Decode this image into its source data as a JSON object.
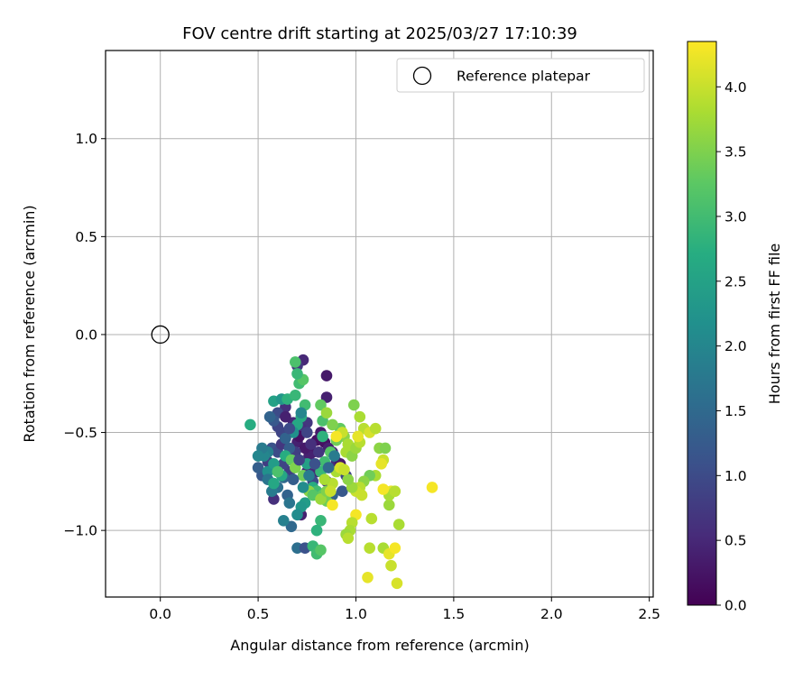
{
  "chart_data": {
    "type": "scatter",
    "title": "FOV centre drift starting at 2025/03/27 17:10:39",
    "xlabel": "Angular distance from reference (arcmin)",
    "ylabel": "Rotation from reference (arcmin)",
    "xlim": [
      -0.28,
      2.52
    ],
    "ylim": [
      -1.34,
      1.45
    ],
    "x_ticks": [
      {
        "value": 0.0,
        "label": "0.0"
      },
      {
        "value": 0.5,
        "label": "0.5"
      },
      {
        "value": 1.0,
        "label": "1.0"
      },
      {
        "value": 1.5,
        "label": "1.5"
      },
      {
        "value": 2.0,
        "label": "2.0"
      },
      {
        "value": 2.5,
        "label": "2.5"
      }
    ],
    "y_ticks": [
      {
        "value": -1.0,
        "label": "−1.0"
      },
      {
        "value": -0.5,
        "label": "−0.5"
      },
      {
        "value": 0.0,
        "label": "0.0"
      },
      {
        "value": 0.5,
        "label": "0.5"
      },
      {
        "value": 1.0,
        "label": "1.0"
      }
    ],
    "grid": true,
    "legend": {
      "position": "top-right",
      "label": "Reference platepar"
    },
    "reference_point": {
      "x": 0.0,
      "y": 0.0
    },
    "colorbar": {
      "label": "Hours from first FF file",
      "colormap": "viridis",
      "range": [
        0.0,
        4.35
      ],
      "ticks": [
        {
          "value": 0.0,
          "label": "0.0"
        },
        {
          "value": 0.5,
          "label": "0.5"
        },
        {
          "value": 1.0,
          "label": "1.0"
        },
        {
          "value": 1.5,
          "label": "1.5"
        },
        {
          "value": 2.0,
          "label": "2.0"
        },
        {
          "value": 2.5,
          "label": "2.5"
        },
        {
          "value": 3.0,
          "label": "3.0"
        },
        {
          "value": 3.5,
          "label": "3.5"
        },
        {
          "value": 4.0,
          "label": "4.0"
        }
      ]
    },
    "points": [
      [
        0.85,
        -0.21,
        0.3
      ],
      [
        0.85,
        -0.32,
        0.4
      ],
      [
        0.73,
        -0.13,
        0.5
      ],
      [
        0.7,
        -0.16,
        0.7
      ],
      [
        0.64,
        -0.37,
        0.6
      ],
      [
        0.6,
        -0.4,
        1.0
      ],
      [
        0.62,
        -0.5,
        0.9
      ],
      [
        0.57,
        -0.58,
        1.1
      ],
      [
        0.55,
        -0.65,
        0.8
      ],
      [
        0.52,
        -0.72,
        1.2
      ],
      [
        0.5,
        -0.68,
        1.3
      ],
      [
        0.58,
        -0.84,
        0.6
      ],
      [
        0.65,
        -0.82,
        1.4
      ],
      [
        0.67,
        -0.98,
        1.5
      ],
      [
        0.7,
        -1.09,
        1.6
      ],
      [
        0.74,
        -1.09,
        1.1
      ],
      [
        0.72,
        -0.92,
        0.4
      ],
      [
        0.75,
        -0.7,
        0.5
      ],
      [
        0.78,
        -0.6,
        0.3
      ],
      [
        0.8,
        -0.54,
        0.2
      ],
      [
        0.7,
        -0.55,
        0.4
      ],
      [
        0.68,
        -0.62,
        0.6
      ],
      [
        0.66,
        -0.7,
        0.8
      ],
      [
        0.63,
        -0.66,
        0.9
      ],
      [
        0.6,
        -0.6,
        1.0
      ],
      [
        0.75,
        -0.45,
        0.7
      ],
      [
        0.72,
        -0.48,
        0.6
      ],
      [
        0.68,
        -0.45,
        0.5
      ],
      [
        0.64,
        -0.42,
        0.4
      ],
      [
        0.62,
        -0.56,
        0.7
      ],
      [
        0.82,
        -0.5,
        0.3
      ],
      [
        0.84,
        -0.55,
        0.2
      ],
      [
        0.86,
        -0.58,
        0.4
      ],
      [
        0.88,
        -0.6,
        0.5
      ],
      [
        0.9,
        -0.65,
        0.6
      ],
      [
        0.92,
        -0.66,
        0.3
      ],
      [
        0.95,
        -0.72,
        0.9
      ],
      [
        0.93,
        -0.8,
        1.2
      ],
      [
        0.88,
        -0.82,
        1.4
      ],
      [
        0.85,
        -0.75,
        0.7
      ],
      [
        0.8,
        -0.7,
        0.5
      ],
      [
        0.78,
        -0.75,
        1.0
      ],
      [
        0.76,
        -0.62,
        0.4
      ],
      [
        0.74,
        -0.58,
        0.3
      ],
      [
        0.71,
        -0.52,
        0.2
      ],
      [
        0.69,
        -0.6,
        0.8
      ],
      [
        0.66,
        -0.58,
        1.3
      ],
      [
        0.63,
        -0.73,
        1.5
      ],
      [
        0.6,
        -0.78,
        1.6
      ],
      [
        0.57,
        -0.8,
        1.8
      ],
      [
        0.55,
        -0.6,
        1.9
      ],
      [
        0.53,
        -0.62,
        2.0
      ],
      [
        0.55,
        -0.7,
        2.2
      ],
      [
        0.58,
        -0.66,
        2.4
      ],
      [
        0.62,
        -0.72,
        2.6
      ],
      [
        0.46,
        -0.46,
        2.7
      ],
      [
        0.58,
        -0.34,
        2.5
      ],
      [
        0.62,
        -0.33,
        2.3
      ],
      [
        0.65,
        -0.33,
        2.8
      ],
      [
        0.69,
        -0.31,
        2.9
      ],
      [
        0.71,
        -0.25,
        3.0
      ],
      [
        0.73,
        -0.23,
        3.2
      ],
      [
        0.7,
        -0.2,
        2.9
      ],
      [
        0.69,
        -0.14,
        3.1
      ],
      [
        0.74,
        -0.36,
        3.0
      ],
      [
        0.72,
        -0.42,
        2.7
      ],
      [
        0.7,
        -0.46,
        2.6
      ],
      [
        0.68,
        -0.5,
        2.2
      ],
      [
        0.75,
        -0.66,
        2.5
      ],
      [
        0.78,
        -0.78,
        2.7
      ],
      [
        0.8,
        -0.8,
        3.0
      ],
      [
        0.83,
        -0.82,
        3.3
      ],
      [
        0.85,
        -0.85,
        3.4
      ],
      [
        0.82,
        -0.95,
        2.9
      ],
      [
        0.8,
        -1.0,
        2.8
      ],
      [
        0.78,
        -1.08,
        2.9
      ],
      [
        0.8,
        -1.12,
        3.0
      ],
      [
        0.82,
        -1.1,
        3.2
      ],
      [
        0.74,
        -0.86,
        2.4
      ],
      [
        0.72,
        -0.88,
        2.3
      ],
      [
        0.7,
        -0.92,
        2.1
      ],
      [
        0.66,
        -0.86,
        1.7
      ],
      [
        0.64,
        -0.53,
        1.4
      ],
      [
        0.66,
        -0.48,
        1.0
      ],
      [
        0.6,
        -0.47,
        0.9
      ],
      [
        0.58,
        -0.44,
        1.2
      ],
      [
        0.56,
        -0.42,
        1.4
      ],
      [
        0.52,
        -0.58,
        1.8
      ],
      [
        0.5,
        -0.62,
        2.0
      ],
      [
        0.55,
        -0.74,
        1.7
      ],
      [
        0.58,
        -0.76,
        2.6
      ],
      [
        0.6,
        -0.7,
        3.1
      ],
      [
        0.64,
        -0.62,
        2.7
      ],
      [
        0.67,
        -0.64,
        3.3
      ],
      [
        0.69,
        -0.68,
        3.5
      ],
      [
        0.73,
        -0.72,
        3.4
      ],
      [
        0.76,
        -0.8,
        3.6
      ],
      [
        0.78,
        -0.82,
        3.2
      ],
      [
        0.82,
        -0.84,
        3.7
      ],
      [
        0.85,
        -0.8,
        3.5
      ],
      [
        0.88,
        -0.76,
        3.9
      ],
      [
        0.9,
        -0.7,
        3.8
      ],
      [
        0.92,
        -0.68,
        4.1
      ],
      [
        0.95,
        -0.6,
        3.8
      ],
      [
        0.94,
        -0.52,
        3.6
      ],
      [
        0.92,
        -0.48,
        3.3
      ],
      [
        0.9,
        -0.54,
        3.4
      ],
      [
        0.87,
        -0.6,
        3.2
      ],
      [
        0.84,
        -0.65,
        3.0
      ],
      [
        0.82,
        -0.7,
        2.9
      ],
      [
        0.83,
        -0.52,
        2.8
      ],
      [
        0.83,
        -0.44,
        3.1
      ],
      [
        0.82,
        -0.36,
        3.3
      ],
      [
        0.85,
        -0.4,
        3.7
      ],
      [
        0.88,
        -0.46,
        3.5
      ],
      [
        0.93,
        -0.5,
        4.0
      ],
      [
        0.96,
        -0.56,
        3.8
      ],
      [
        0.98,
        -0.62,
        3.6
      ],
      [
        1.0,
        -0.58,
        3.7
      ],
      [
        1.02,
        -0.55,
        3.9
      ],
      [
        1.02,
        -0.42,
        3.8
      ],
      [
        0.99,
        -0.36,
        3.5
      ],
      [
        1.04,
        -0.48,
        3.9
      ],
      [
        1.07,
        -0.5,
        4.1
      ],
      [
        1.1,
        -0.48,
        3.9
      ],
      [
        1.12,
        -0.58,
        3.6
      ],
      [
        1.15,
        -0.58,
        3.5
      ],
      [
        1.14,
        -0.64,
        4.0
      ],
      [
        1.13,
        -0.66,
        4.2
      ],
      [
        1.1,
        -0.72,
        3.8
      ],
      [
        1.07,
        -0.72,
        3.4
      ],
      [
        1.04,
        -0.75,
        3.6
      ],
      [
        1.02,
        -0.78,
        3.9
      ],
      [
        1.0,
        -0.8,
        4.0
      ],
      [
        1.03,
        -0.82,
        4.0
      ],
      [
        0.98,
        -0.78,
        3.7
      ],
      [
        0.96,
        -0.74,
        3.6
      ],
      [
        1.0,
        -0.92,
        4.3
      ],
      [
        0.98,
        -0.96,
        3.9
      ],
      [
        0.97,
        -1.0,
        3.8
      ],
      [
        0.95,
        -1.02,
        3.7
      ],
      [
        0.96,
        -1.04,
        3.9
      ],
      [
        1.08,
        -0.94,
        3.9
      ],
      [
        1.17,
        -0.87,
        3.7
      ],
      [
        1.18,
        -0.8,
        4.2
      ],
      [
        1.17,
        -0.82,
        3.8
      ],
      [
        1.14,
        -0.79,
        4.3
      ],
      [
        1.2,
        -0.8,
        3.9
      ],
      [
        1.22,
        -0.97,
        3.8
      ],
      [
        1.07,
        -1.09,
        3.9
      ],
      [
        1.14,
        -1.09,
        3.8
      ],
      [
        1.17,
        -1.12,
        4.2
      ],
      [
        1.2,
        -1.09,
        4.3
      ],
      [
        1.18,
        -1.18,
        4.0
      ],
      [
        1.21,
        -1.27,
        4.1
      ],
      [
        1.06,
        -1.24,
        4.2
      ],
      [
        1.39,
        -0.78,
        4.3
      ],
      [
        0.88,
        -0.87,
        4.3
      ],
      [
        0.87,
        -0.8,
        4.0
      ],
      [
        0.84,
        -0.74,
        3.8
      ],
      [
        0.9,
        -0.52,
        4.3
      ],
      [
        0.94,
        -0.69,
        4.0
      ],
      [
        1.01,
        -0.52,
        4.2
      ],
      [
        0.72,
        -0.4,
        2.0
      ],
      [
        0.75,
        -0.5,
        0.9
      ],
      [
        0.77,
        -0.56,
        0.6
      ],
      [
        0.81,
        -0.6,
        0.7
      ],
      [
        0.79,
        -0.66,
        1.1
      ],
      [
        0.76,
        -0.72,
        1.8
      ],
      [
        0.73,
        -0.78,
        2.1
      ],
      [
        0.63,
        -0.95,
        1.9
      ],
      [
        0.68,
        -0.74,
        1.3
      ],
      [
        0.71,
        -0.64,
        0.9
      ],
      [
        0.86,
        -0.68,
        1.5
      ],
      [
        0.89,
        -0.62,
        1.8
      ]
    ]
  }
}
